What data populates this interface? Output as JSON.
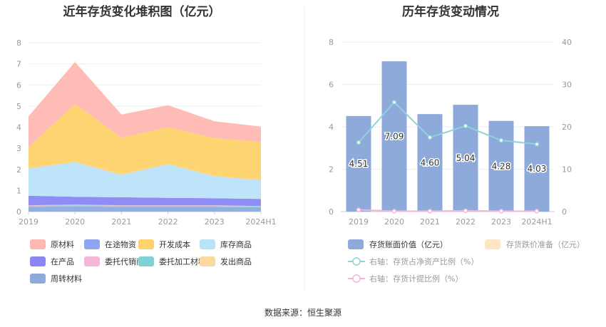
{
  "source_label": "数据来源：恒生聚源",
  "chart_data": [
    {
      "type": "area",
      "stacked": true,
      "title": "近年存货变化堆积图（亿元）",
      "categories": [
        "2019",
        "2020",
        "2021",
        "2022",
        "2023",
        "2024H1"
      ],
      "ylim": [
        0,
        8
      ],
      "yticks": [
        0,
        1,
        2,
        3,
        4,
        5,
        6,
        7,
        8
      ],
      "grid": true,
      "legend_position": "bottom",
      "series": [
        {
          "name": "周转材料",
          "color": "#8eaadb",
          "values": [
            0.22,
            0.25,
            0.22,
            0.22,
            0.22,
            0.2
          ]
        },
        {
          "name": "发出商品",
          "color": "#fcd9a0",
          "values": [
            0.0,
            0.0,
            0.0,
            0.0,
            0.0,
            0.0
          ]
        },
        {
          "name": "委托加工材料",
          "color": "#7fd3d6",
          "values": [
            0.05,
            0.05,
            0.05,
            0.05,
            0.05,
            0.04
          ]
        },
        {
          "name": "委托代销商品",
          "color": "#f3b6d9",
          "values": [
            0.03,
            0.03,
            0.03,
            0.03,
            0.03,
            0.02
          ]
        },
        {
          "name": "在产品",
          "color": "#8a86f5",
          "values": [
            0.45,
            0.37,
            0.38,
            0.35,
            0.33,
            0.34
          ]
        },
        {
          "name": "库存商品",
          "color": "#b9e3f9",
          "values": [
            1.3,
            1.65,
            1.07,
            1.6,
            1.05,
            0.9
          ]
        },
        {
          "name": "开发成本",
          "color": "#ffd36b",
          "values": [
            1.0,
            2.75,
            1.75,
            1.75,
            1.8,
            1.8
          ]
        },
        {
          "name": "在途物资",
          "color": "#8fa5f2",
          "values": [
            0.0,
            0.0,
            0.0,
            0.0,
            0.0,
            0.0
          ]
        },
        {
          "name": "原材料",
          "color": "#ffb7b1",
          "values": [
            1.46,
            1.99,
            1.1,
            1.04,
            0.8,
            0.73
          ]
        }
      ],
      "legend_order": [
        "原材料",
        "在途物资",
        "开发成本",
        "库存商品",
        "在产品",
        "委托代销商品",
        "委托加工材料",
        "发出商品",
        "周转材料"
      ]
    },
    {
      "type": "bar",
      "title": "历年存货变动情况",
      "categories": [
        "2019",
        "2020",
        "2021",
        "2022",
        "2023",
        "2024H1"
      ],
      "ylim": [
        0,
        8
      ],
      "yticks": [
        0,
        2,
        4,
        6,
        8
      ],
      "y2lim": [
        0,
        40
      ],
      "y2ticks": [
        0,
        10,
        20,
        30,
        40
      ],
      "grid": true,
      "legend_position": "bottom",
      "series": [
        {
          "name": "存货账面价值（亿元）",
          "type": "bar",
          "color": "#8eaadb",
          "values": [
            4.51,
            7.09,
            4.6,
            5.04,
            4.28,
            4.03
          ]
        },
        {
          "name": "存货跌价准备（亿元）",
          "type": "bar",
          "color": "#fde7c2",
          "values": [
            0,
            0,
            0,
            0,
            0,
            0
          ]
        },
        {
          "name": "右轴：存货占净资产比例（%）",
          "type": "line",
          "axis": "right",
          "color": "#8fd3d8",
          "values": [
            16.3,
            25.8,
            17.5,
            20.2,
            16.8,
            15.9
          ]
        },
        {
          "name": "右轴：存货计提比例（%）",
          "type": "line",
          "axis": "right",
          "color": "#f3b6d9",
          "values": [
            0.4,
            0.1,
            0.1,
            0.2,
            0.1,
            0.1
          ]
        }
      ]
    }
  ]
}
